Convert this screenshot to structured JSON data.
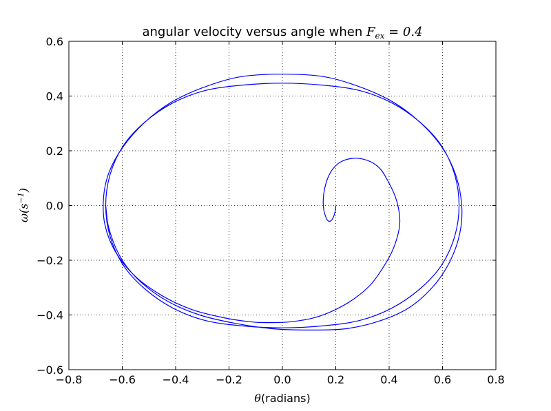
{
  "chart_data": {
    "type": "line",
    "title": {
      "prefix": "angular velocity versus angle when ",
      "math_var": "F",
      "math_sub": "ex",
      "math_rest": " = 0.4"
    },
    "xlabel": {
      "math": "θ",
      "text": "(radians)"
    },
    "ylabel": {
      "math": "ω",
      "text_open": "(s",
      "sup": "−1",
      "text_close": ")"
    },
    "xlim": [
      -0.8,
      0.8
    ],
    "ylim": [
      -0.6,
      0.6
    ],
    "x_ticks": [
      -0.8,
      -0.6,
      -0.4,
      -0.2,
      0.0,
      0.2,
      0.4,
      0.6,
      0.8
    ],
    "x_tick_labels": [
      "−0.8",
      "−0.6",
      "−0.4",
      "−0.2",
      "0.0",
      "0.2",
      "0.4",
      "0.6",
      "0.8"
    ],
    "y_ticks": [
      -0.6,
      -0.4,
      -0.2,
      0.0,
      0.2,
      0.4,
      0.6
    ],
    "y_tick_labels": [
      "−0.6",
      "−0.4",
      "−0.2",
      "0.0",
      "0.2",
      "0.4",
      "0.6"
    ],
    "grid": true,
    "series": [
      {
        "color": "#0000ff",
        "x": [
          0.2,
          0.198,
          0.19,
          0.18,
          0.17,
          0.162,
          0.155,
          0.153,
          0.158,
          0.17,
          0.19,
          0.22,
          0.26,
          0.3,
          0.34,
          0.37,
          0.395,
          0.42,
          0.435,
          0.44,
          0.432,
          0.41,
          0.375,
          0.33,
          0.27,
          0.2,
          0.12,
          0.03,
          -0.05,
          -0.12,
          -0.22,
          -0.34,
          -0.45,
          -0.55,
          -0.625,
          -0.665,
          -0.67,
          -0.65,
          -0.6,
          -0.52,
          -0.42,
          -0.3,
          -0.16,
          0.0,
          0.16,
          0.3,
          0.42,
          0.52,
          0.6,
          0.65,
          0.672,
          0.665,
          0.63,
          0.57,
          0.48,
          0.37,
          0.24,
          0.1,
          -0.04,
          -0.18,
          -0.31,
          -0.43,
          -0.53,
          -0.6,
          -0.645,
          -0.662,
          -0.645,
          -0.595,
          -0.515,
          -0.41,
          -0.29,
          -0.15,
          0.0,
          0.15,
          0.29,
          0.41,
          0.515,
          0.595,
          0.645,
          0.662,
          0.645,
          0.595,
          0.515,
          0.41,
          0.29,
          0.15,
          0.0,
          -0.15,
          -0.29,
          -0.41,
          -0.515,
          -0.595,
          -0.645,
          -0.662,
          -0.645,
          -0.595,
          -0.515,
          -0.41,
          -0.29,
          -0.15,
          0.0,
          0.15,
          0.29,
          0.41,
          0.515,
          0.595,
          0.645,
          0.662,
          0.645,
          0.595,
          0.515,
          0.41,
          0.29,
          0.15,
          0.0,
          -0.15,
          -0.29,
          -0.41,
          -0.515,
          -0.595,
          -0.645,
          -0.662
        ],
        "y": [
          0.0,
          -0.02,
          -0.045,
          -0.057,
          -0.055,
          -0.04,
          -0.015,
          0.02,
          0.06,
          0.1,
          0.135,
          0.16,
          0.172,
          0.17,
          0.155,
          0.13,
          0.09,
          0.04,
          -0.01,
          -0.06,
          -0.11,
          -0.17,
          -0.23,
          -0.29,
          -0.34,
          -0.38,
          -0.41,
          -0.425,
          -0.428,
          -0.425,
          -0.41,
          -0.38,
          -0.33,
          -0.26,
          -0.17,
          -0.07,
          0.03,
          0.12,
          0.21,
          0.3,
          0.375,
          0.43,
          0.47,
          0.48,
          0.47,
          0.43,
          0.375,
          0.3,
          0.21,
          0.11,
          0.0,
          -0.1,
          -0.2,
          -0.29,
          -0.37,
          -0.42,
          -0.45,
          -0.455,
          -0.45,
          -0.43,
          -0.4,
          -0.35,
          -0.28,
          -0.2,
          -0.1,
          0.0,
          0.115,
          0.22,
          0.305,
          0.375,
          0.42,
          0.44,
          0.447,
          0.44,
          0.42,
          0.375,
          0.305,
          0.22,
          0.115,
          0.0,
          -0.115,
          -0.22,
          -0.305,
          -0.375,
          -0.42,
          -0.44,
          -0.447,
          -0.44,
          -0.42,
          -0.375,
          -0.305,
          -0.22,
          -0.115,
          0.0,
          0.115,
          0.22,
          0.305,
          0.375,
          0.42,
          0.44,
          0.447,
          0.44,
          0.42,
          0.375,
          0.305,
          0.22,
          0.115,
          0.0,
          -0.115,
          -0.22,
          -0.305,
          -0.375,
          -0.42,
          -0.44,
          -0.447,
          -0.44,
          -0.42,
          -0.375,
          -0.305,
          -0.22,
          -0.115,
          0.0
        ]
      }
    ]
  }
}
